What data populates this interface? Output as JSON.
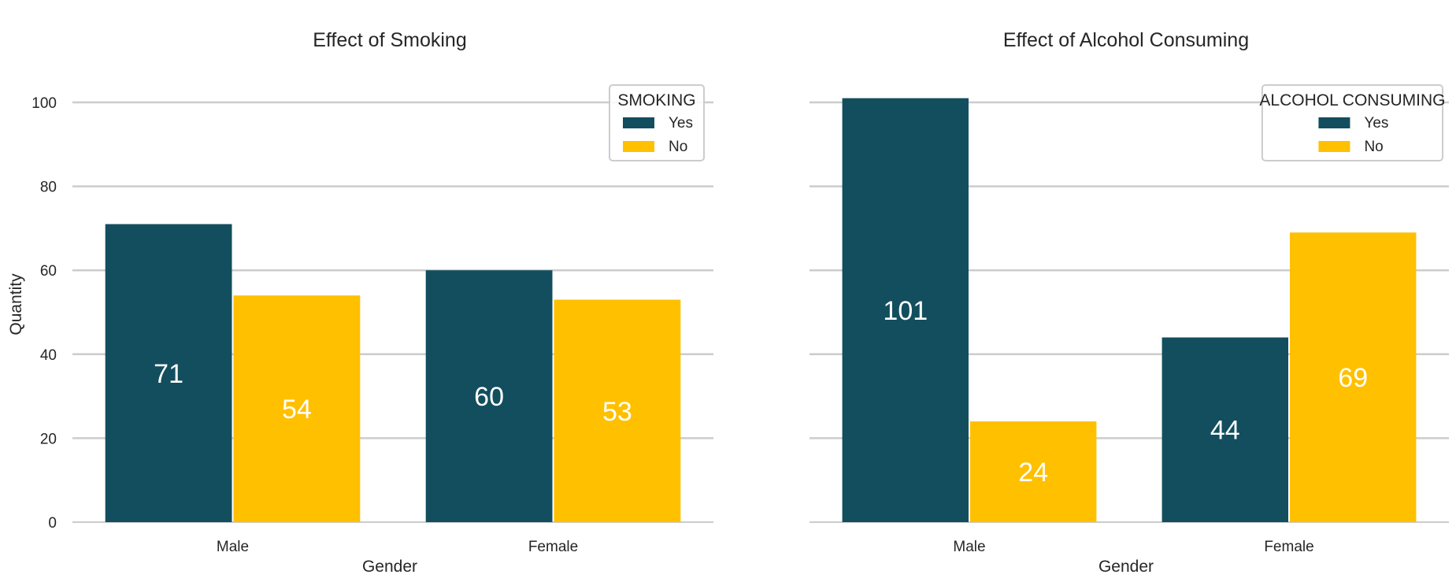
{
  "chart_data": [
    {
      "type": "bar",
      "title": "Effect of Smoking",
      "xlabel": "Gender",
      "ylabel": "Quantity",
      "categories": [
        "Male",
        "Female"
      ],
      "ylim": [
        0,
        100
      ],
      "yticks": [
        "0",
        "20",
        "40",
        "60",
        "80",
        "100"
      ],
      "grid": true,
      "legend": {
        "title": "SMOKING",
        "placement": "top-right"
      },
      "series": [
        {
          "name": "Yes",
          "color": "#124e5e",
          "values": [
            71,
            60
          ]
        },
        {
          "name": "No",
          "color": "#ffc000",
          "values": [
            54,
            53
          ]
        }
      ]
    },
    {
      "type": "bar",
      "title": "Effect of Alcohol Consuming",
      "xlabel": "Gender",
      "ylabel": "",
      "categories": [
        "Male",
        "Female"
      ],
      "ylim": [
        0,
        100
      ],
      "yticks": [],
      "grid": true,
      "legend": {
        "title": "ALCOHOL CONSUMING",
        "placement": "top-right"
      },
      "series": [
        {
          "name": "Yes",
          "color": "#124e5e",
          "values": [
            101,
            44
          ]
        },
        {
          "name": "No",
          "color": "#ffc000",
          "values": [
            24,
            69
          ]
        }
      ]
    }
  ]
}
